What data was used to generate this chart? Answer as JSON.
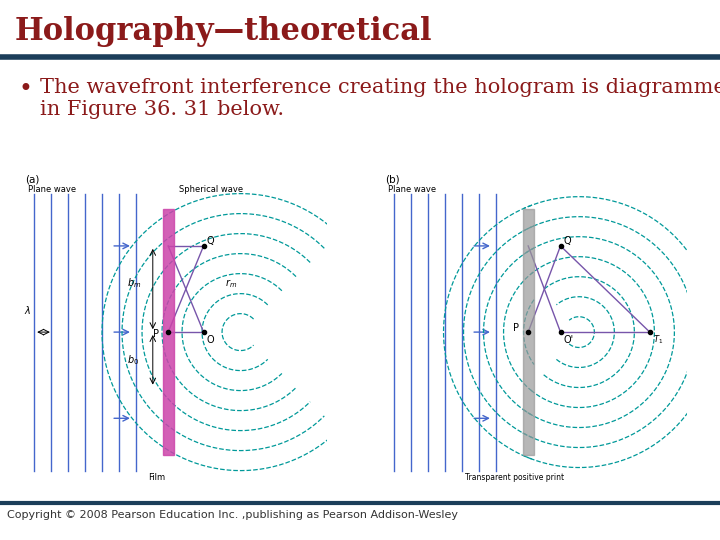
{
  "title": "Holography—theoretical",
  "title_color": "#8B1A1A",
  "title_fontsize": 22,
  "rule_color": "#1C3E5A",
  "bullet_text_line1": "The wavefront interference creating the hologram is diagrammed",
  "bullet_text_line2": "in Figure 36. 31 below.",
  "bullet_color": "#8B1A1A",
  "bullet_fontsize": 15,
  "body_text_color": "#8B1A1A",
  "copyright": "Copyright © 2008 Pearson Education Inc. ,publishing as Pearson Addison-Wesley",
  "copyright_fontsize": 8,
  "background_color": "#FFFFFF",
  "label_a": "(a)",
  "label_b": "(b)",
  "plane_wave_label": "Plane wave",
  "spherical_wave_label": "Spherical wave",
  "film_label": "Film",
  "transparent_label": "Transparent positive print"
}
